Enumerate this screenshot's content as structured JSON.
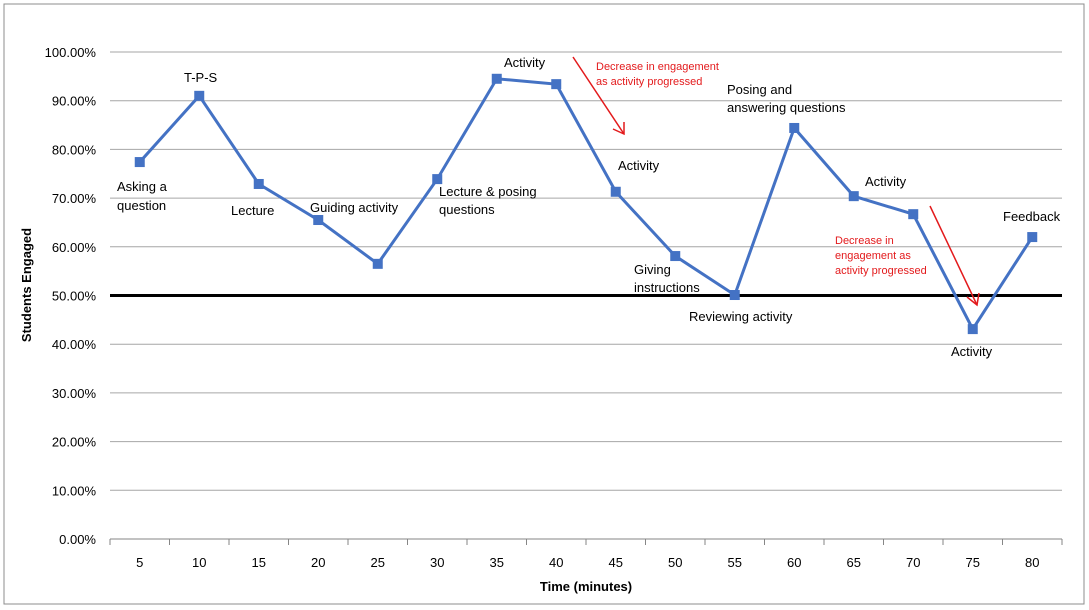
{
  "chart_data": {
    "type": "line",
    "title": "",
    "xlabel": "Time (minutes)",
    "ylabel": "Students Engaged",
    "categories": [
      "5",
      "10",
      "15",
      "20",
      "25",
      "30",
      "35",
      "40",
      "45",
      "50",
      "55",
      "60",
      "65",
      "70",
      "75",
      "80"
    ],
    "series": [
      {
        "name": "Students Engaged",
        "color": "#4472c4",
        "values": [
          77.4,
          91.0,
          72.9,
          65.5,
          56.5,
          73.9,
          94.5,
          93.4,
          71.3,
          58.1,
          50.1,
          84.4,
          70.4,
          66.7,
          43.1,
          62.0
        ]
      }
    ],
    "ylim": [
      0,
      100
    ],
    "yticks": [
      "0.00%",
      "10.00%",
      "20.00%",
      "30.00%",
      "40.00%",
      "50.00%",
      "60.00%",
      "70.00%",
      "80.00%",
      "90.00%",
      "100.00%"
    ],
    "reference_line": {
      "value": 50,
      "color": "#000000"
    },
    "grid": true,
    "annotations": {
      "asking": [
        "Asking a",
        "question"
      ],
      "tps": [
        "T-P-S"
      ],
      "lecture": [
        "Lecture"
      ],
      "guiding": [
        "Guiding activity"
      ],
      "lecture_posing": [
        "Lecture & posing",
        "questions"
      ],
      "activity35": [
        "Activity"
      ],
      "decrease1": [
        "Decrease in engagement",
        "as activity progressed"
      ],
      "activity45": [
        "Activity"
      ],
      "giving": [
        "Giving",
        "instructions"
      ],
      "reviewing": [
        "Reviewing activity"
      ],
      "posing": [
        "Posing and",
        "answering questions"
      ],
      "activity65": [
        "Activity"
      ],
      "decrease2": [
        "Decrease in",
        "engagement as",
        "activity progressed"
      ],
      "activity75": [
        "Activity"
      ],
      "feedback": [
        "Feedback"
      ]
    }
  }
}
